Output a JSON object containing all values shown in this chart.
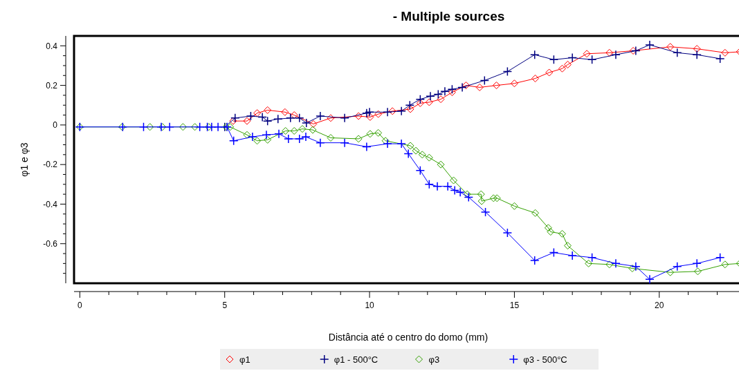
{
  "chart_data": {
    "type": "line",
    "title": "- Multiple sources",
    "xlabel": "Distância até o centro do domo (mm)",
    "ylabel": "φ1 e φ3",
    "xlim": [
      -0.2,
      22.8
    ],
    "ylim": [
      -0.8,
      0.45
    ],
    "xticks": [
      0,
      {
        "value": 1,
        "label": null
      },
      {
        "value": 2,
        "label": null
      },
      {
        "value": 3,
        "label": null
      },
      {
        "value": 4,
        "label": null
      },
      5,
      {
        "value": 6,
        "label": null
      },
      {
        "value": 7,
        "label": null
      },
      {
        "value": 8,
        "label": null
      },
      {
        "value": 9,
        "label": null
      },
      10,
      {
        "value": 11,
        "label": null
      },
      {
        "value": 12,
        "label": null
      },
      {
        "value": 13,
        "label": null
      },
      {
        "value": 14,
        "label": null
      },
      15,
      {
        "value": 16,
        "label": null
      },
      {
        "value": 17,
        "label": null
      },
      {
        "value": 18,
        "label": null
      },
      {
        "value": 19,
        "label": null
      },
      20,
      {
        "value": 21,
        "label": null
      },
      {
        "value": 22,
        "label": null
      }
    ],
    "yticks": [
      {
        "value": -0.75,
        "label": null
      },
      {
        "value": -0.7,
        "label": null
      },
      {
        "value": -0.65,
        "label": null
      },
      -0.6,
      {
        "value": -0.55,
        "label": null
      },
      {
        "value": -0.5,
        "label": null
      },
      {
        "value": -0.45,
        "label": null
      },
      -0.4,
      {
        "value": -0.35,
        "label": null
      },
      {
        "value": -0.3,
        "label": null
      },
      {
        "value": -0.25,
        "label": null
      },
      -0.2,
      {
        "value": -0.15,
        "label": null
      },
      {
        "value": -0.1,
        "label": null
      },
      {
        "value": -0.05,
        "label": null
      },
      0,
      {
        "value": 0.05,
        "label": null
      },
      {
        "value": 0.1,
        "label": null
      },
      {
        "value": 0.15,
        "label": null
      },
      0.2,
      {
        "value": 0.25,
        "label": null
      },
      {
        "value": 0.3,
        "label": null
      },
      {
        "value": 0.35,
        "label": null
      },
      0.4
    ],
    "grid": false,
    "legend": "bottom",
    "series": [
      {
        "name": "φ1",
        "color": "#ff0000",
        "marker": "diamond",
        "x": [
          5.29,
          5.77,
          6.12,
          6.48,
          7.08,
          7.4,
          8.06,
          8.66,
          9.62,
          10.02,
          10.3,
          10.79,
          11.41,
          11.75,
          12.06,
          12.46,
          12.85,
          13.33,
          13.8,
          14.38,
          15.0,
          15.72,
          16.2,
          16.65,
          16.84,
          17.5,
          18.28,
          19.1,
          20.38,
          21.3,
          22.27,
          22.78
        ],
        "values": [
          0.02,
          0.02,
          0.06,
          0.075,
          0.065,
          0.05,
          0.005,
          0.035,
          0.045,
          0.04,
          0.055,
          0.07,
          0.08,
          0.11,
          0.115,
          0.13,
          0.165,
          0.2,
          0.19,
          0.2,
          0.21,
          0.235,
          0.265,
          0.285,
          0.305,
          0.36,
          0.365,
          0.375,
          0.395,
          0.385,
          0.365,
          0.37
        ]
      },
      {
        "name": "φ1 -  500°C",
        "color": "#000080",
        "marker": "cross",
        "x": [
          5.0,
          5.36,
          5.9,
          6.3,
          6.48,
          6.84,
          7.27,
          7.58,
          7.82,
          8.3,
          9.14,
          9.9,
          10.0,
          10.62,
          11.1,
          11.39,
          11.75,
          12.1,
          12.37,
          12.6,
          12.85,
          13.2,
          13.97,
          14.76,
          15.7,
          16.36,
          17.0,
          17.68,
          18.5,
          19.19,
          19.67,
          20.62,
          21.3,
          22.1
        ],
        "values": [
          -0.01,
          0.035,
          0.045,
          0.04,
          0.02,
          0.03,
          0.035,
          0.035,
          0.01,
          0.045,
          0.035,
          0.06,
          0.065,
          0.065,
          0.07,
          0.1,
          0.13,
          0.145,
          0.155,
          0.17,
          0.18,
          0.19,
          0.225,
          0.27,
          0.355,
          0.33,
          0.34,
          0.33,
          0.355,
          0.375,
          0.405,
          0.365,
          0.355,
          0.335
        ]
      },
      {
        "name": "φ3",
        "color": "#33a000",
        "marker": "diamond",
        "x": [
          0,
          1.46,
          2.42,
          2.85,
          3.56,
          3.97,
          4.45,
          5.05,
          5.19,
          5.77,
          6.12,
          6.48,
          7.1,
          7.4,
          7.68,
          8.04,
          8.66,
          9.62,
          10.02,
          10.3,
          10.55,
          11.41,
          11.6,
          11.82,
          12.06,
          12.46,
          12.9,
          13.37,
          13.85,
          13.87,
          14.28,
          14.4,
          15.0,
          15.72,
          16.17,
          16.25,
          16.65,
          16.84,
          17.56,
          18.28,
          19.07,
          20.38,
          21.33,
          22.27,
          22.78
        ],
        "values": [
          -0.01,
          -0.01,
          -0.01,
          -0.01,
          -0.01,
          -0.01,
          -0.01,
          -0.01,
          -0.01,
          -0.05,
          -0.08,
          -0.075,
          -0.03,
          -0.03,
          -0.02,
          -0.025,
          -0.065,
          -0.07,
          -0.045,
          -0.04,
          -0.08,
          -0.105,
          -0.13,
          -0.15,
          -0.165,
          -0.2,
          -0.28,
          -0.35,
          -0.35,
          -0.385,
          -0.37,
          -0.37,
          -0.41,
          -0.445,
          -0.52,
          -0.54,
          -0.55,
          -0.61,
          -0.7,
          -0.705,
          -0.725,
          -0.745,
          -0.74,
          -0.705,
          -0.7
        ]
      },
      {
        "name": "φ3 - 500°C",
        "color": "#0000ff",
        "marker": "cross",
        "x": [
          0,
          1.48,
          2.2,
          2.81,
          3.1,
          4.14,
          4.4,
          4.55,
          4.77,
          5.08,
          5.31,
          5.96,
          6.44,
          6.87,
          7.2,
          7.58,
          7.8,
          8.3,
          9.14,
          9.9,
          10.62,
          11.1,
          11.34,
          11.75,
          12.06,
          12.34,
          12.7,
          12.94,
          13.13,
          13.42,
          14.0,
          14.76,
          15.7,
          16.36,
          17.0,
          17.68,
          18.5,
          19.19,
          19.67,
          20.62,
          21.3,
          22.1
        ],
        "values": [
          -0.01,
          -0.01,
          -0.01,
          -0.01,
          -0.01,
          -0.01,
          -0.01,
          -0.01,
          -0.01,
          -0.01,
          -0.08,
          -0.06,
          -0.05,
          -0.045,
          -0.07,
          -0.07,
          -0.06,
          -0.09,
          -0.09,
          -0.11,
          -0.095,
          -0.095,
          -0.145,
          -0.23,
          -0.3,
          -0.31,
          -0.31,
          -0.33,
          -0.34,
          -0.365,
          -0.44,
          -0.545,
          -0.685,
          -0.645,
          -0.66,
          -0.67,
          -0.7,
          -0.715,
          -0.78,
          -0.715,
          -0.7,
          -0.67
        ]
      }
    ]
  }
}
